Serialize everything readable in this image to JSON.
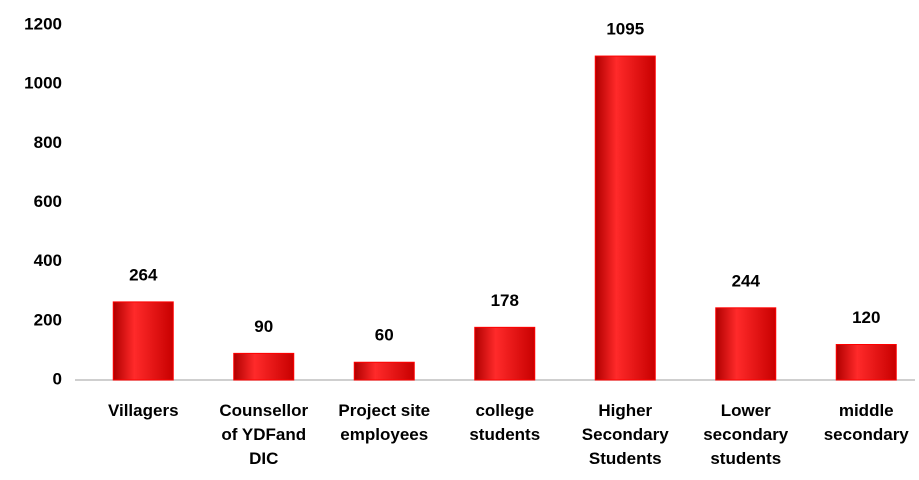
{
  "chart_data": {
    "type": "bar",
    "categories": [
      "Villagers",
      "Counsellor of YDFand DIC",
      "Project site employees",
      "college students",
      "Higher Secondary Students",
      "Lower secondary students",
      "middle secondary"
    ],
    "values": [
      264,
      90,
      60,
      178,
      1095,
      244,
      120
    ],
    "color": "#ff0000",
    "ylim": [
      0,
      1200
    ],
    "yticks": [
      0,
      200,
      400,
      600,
      800,
      1000,
      1200
    ],
    "grid": false
  }
}
